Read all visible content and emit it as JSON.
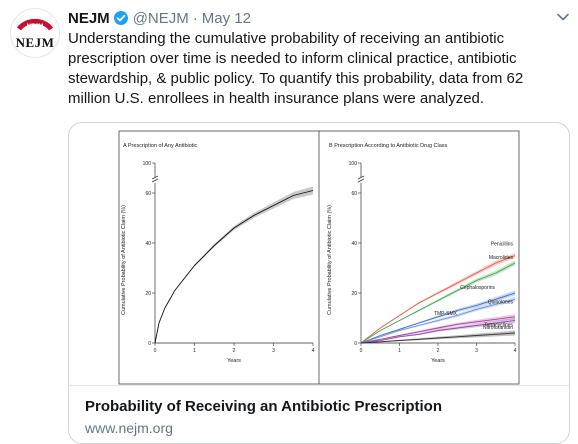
{
  "tweet": {
    "avatar_text": "NEJM",
    "avatar_ring_text": "NEJM",
    "author_name": "NEJM",
    "handle": "@NEJM",
    "separator": "·",
    "date": "May 12",
    "text": "Understanding the cumulative probability of receiving an antibiotic prescription over time is needed to inform clinical practice, antibiotic stewardship, & public policy. To quantify this probability, data from 62 million U.S. enrollees in health insurance plans were analyzed."
  },
  "card": {
    "title": "Probability of Receiving an Antibiotic Prescription",
    "url": "www.nejm.org"
  },
  "colors": {
    "text": "#14171a",
    "muted": "#657786",
    "verified": "#1da1f2",
    "border": "#ccd6dd",
    "logo_red": "#c8102e"
  },
  "icons": [
    "verified-badge-icon",
    "chevron-down-icon"
  ],
  "chart_data": [
    {
      "type": "line",
      "title": "A Prescription of Any Antibiotic",
      "xlabel": "Years",
      "ylabel": "Cumulative Probability of Antibiotic Claim (%)",
      "xticks": [
        "0",
        "1",
        "2",
        "3",
        "4"
      ],
      "yticks": [
        "0",
        "20",
        "40",
        "60",
        "100"
      ],
      "xlim": [
        0,
        4
      ],
      "axis_break": [
        62,
        98
      ],
      "series": [
        {
          "x": [
            0,
            0.1,
            0.25,
            0.5,
            0.75,
            1,
            1.5,
            2,
            2.5,
            3,
            3.5,
            4
          ],
          "values": [
            0,
            8,
            14,
            21,
            26,
            31,
            39,
            46,
            51,
            55,
            59,
            61
          ]
        }
      ]
    },
    {
      "type": "line",
      "title": "B Prescription According to Antibiotic Drug Class",
      "xlabel": "Years",
      "ylabel": "Cumulative Probability of Antibiotic Claim (%)",
      "xticks": [
        "0",
        "1",
        "2",
        "3",
        "4"
      ],
      "yticks": [
        "0",
        "20",
        "40",
        "60",
        "100"
      ],
      "xlim": [
        0,
        4
      ],
      "axis_break": [
        62,
        98
      ],
      "series": [
        {
          "name": "Penicillins",
          "color": "#e8593f",
          "x": [
            0,
            0.5,
            1,
            1.5,
            2,
            2.5,
            3,
            3.5,
            4
          ],
          "values": [
            0,
            6,
            11,
            16,
            20,
            24,
            28,
            32,
            35
          ]
        },
        {
          "name": "Macrolides",
          "color": "#3fa64a",
          "x": [
            0,
            0.5,
            1,
            1.5,
            2,
            2.5,
            3,
            3.5,
            4
          ],
          "values": [
            0,
            5,
            9,
            13,
            17,
            21,
            25,
            28,
            32
          ]
        },
        {
          "name": "Cephalosporins",
          "color": "#3b6fc9",
          "x": [
            0,
            0.5,
            1,
            1.5,
            2,
            2.5,
            3,
            3.5,
            4
          ],
          "values": [
            0,
            3,
            5.5,
            8,
            10.5,
            13,
            15,
            17.5,
            20
          ]
        },
        {
          "name": "Quinolones",
          "color": "#6a8fd8",
          "x": [
            0,
            0.5,
            1,
            1.5,
            2,
            2.5,
            3,
            3.5,
            4
          ],
          "values": [
            0,
            2.5,
            5,
            7,
            9,
            11,
            13.5,
            15.5,
            17.5
          ]
        },
        {
          "name": "TMP-SMX",
          "color": "#b33fa0",
          "x": [
            0,
            0.5,
            1,
            1.5,
            2,
            2.5,
            3,
            3.5,
            4
          ],
          "values": [
            0,
            1.5,
            3,
            4.5,
            6,
            7.5,
            8.5,
            9.5,
            10.5
          ]
        },
        {
          "name": "Tetracyclines",
          "color": "#8a4fa5",
          "x": [
            0,
            0.5,
            1,
            1.5,
            2,
            2.5,
            3,
            3.5,
            4
          ],
          "values": [
            0,
            1,
            2.5,
            3.5,
            5,
            6,
            7,
            8,
            9
          ]
        },
        {
          "name": "Nitrofurantoin",
          "color": "#333333",
          "x": [
            0,
            0.5,
            1,
            1.5,
            2,
            2.5,
            3,
            3.5,
            4
          ],
          "values": [
            0,
            0.5,
            1,
            1.5,
            2,
            2.5,
            3,
            3.5,
            4
          ]
        }
      ]
    }
  ]
}
